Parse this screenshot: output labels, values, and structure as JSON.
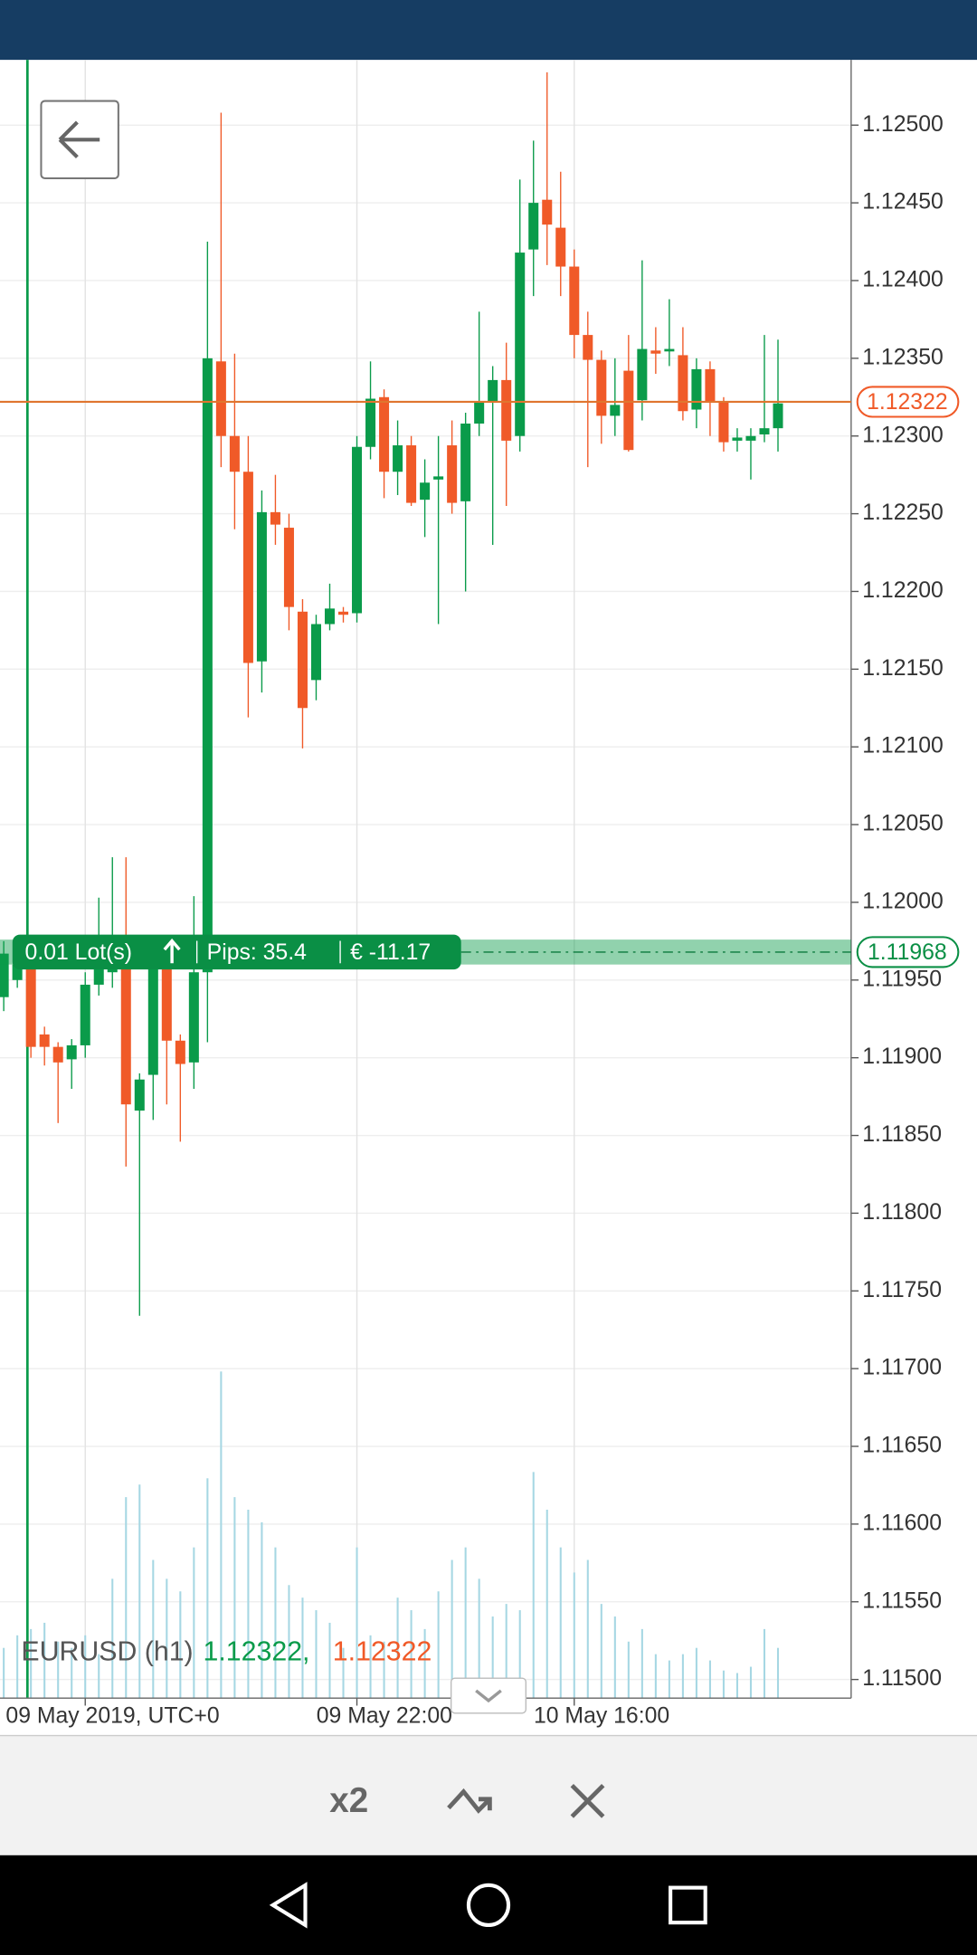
{
  "chart_data": {
    "type": "candlestick",
    "up_color": "#0a9b4a",
    "down_color": "#f05a28",
    "volume_color": "#a6d7e3",
    "ylim": [
      1.11488,
      1.12542
    ],
    "yticks": [
      {
        "value": 1.115,
        "label": "1.11500"
      },
      {
        "value": 1.1155,
        "label": "1.11550"
      },
      {
        "value": 1.116,
        "label": "1.11600"
      },
      {
        "value": 1.1165,
        "label": "1.11650"
      },
      {
        "value": 1.117,
        "label": "1.11700"
      },
      {
        "value": 1.1175,
        "label": "1.11750"
      },
      {
        "value": 1.118,
        "label": "1.11800"
      },
      {
        "value": 1.1185,
        "label": "1.11850"
      },
      {
        "value": 1.119,
        "label": "1.11900"
      },
      {
        "value": 1.1195,
        "label": "1.11950"
      },
      {
        "value": 1.12,
        "label": "1.12000"
      },
      {
        "value": 1.1205,
        "label": "1.12050"
      },
      {
        "value": 1.121,
        "label": "1.12100"
      },
      {
        "value": 1.1215,
        "label": "1.12150"
      },
      {
        "value": 1.122,
        "label": "1.12200"
      },
      {
        "value": 1.1225,
        "label": "1.12250"
      },
      {
        "value": 1.123,
        "label": "1.12300"
      },
      {
        "value": 1.1235,
        "label": "1.12350"
      },
      {
        "value": 1.124,
        "label": "1.12400"
      },
      {
        "value": 1.1245,
        "label": "1.12450"
      },
      {
        "value": 1.125,
        "label": "1.12500"
      }
    ],
    "categories": [
      null,
      null,
      null,
      null,
      null,
      null,
      "09 May 2019, UTC+0",
      null,
      null,
      null,
      null,
      null,
      null,
      null,
      null,
      null,
      null,
      null,
      null,
      null,
      null,
      null,
      null,
      null,
      null,
      null,
      "09 May 22:00",
      null,
      null,
      null,
      null,
      null,
      null,
      null,
      null,
      null,
      null,
      null,
      null,
      null,
      null,
      null,
      "10 May 16:00",
      null,
      null,
      null,
      null,
      null,
      null,
      null,
      null,
      null,
      null,
      null,
      null,
      null,
      null,
      null
    ],
    "ohlc": [
      [
        1.11939,
        1.11975,
        1.1193,
        1.11967
      ],
      [
        1.1195,
        1.1197,
        1.11945,
        1.1196
      ],
      [
        1.11959,
        1.11965,
        1.119,
        1.11907
      ],
      [
        1.11915,
        1.1192,
        1.11895,
        1.11907
      ],
      [
        1.11907,
        1.1191,
        1.11858,
        1.11897
      ],
      [
        1.11899,
        1.11912,
        1.1188,
        1.11908
      ],
      [
        1.11908,
        1.11955,
        1.119,
        1.11947
      ],
      [
        1.11947,
        1.12003,
        1.1194,
        1.11959
      ],
      [
        1.11955,
        1.12029,
        1.11945,
        1.11967
      ],
      [
        1.11959,
        1.12029,
        1.1183,
        1.1187
      ],
      [
        1.11866,
        1.1189,
        1.11734,
        1.11886
      ],
      [
        1.11889,
        1.11965,
        1.1186,
        1.11959
      ],
      [
        1.11959,
        1.11965,
        1.1187,
        1.11911
      ],
      [
        1.11911,
        1.11915,
        1.11846,
        1.11896
      ],
      [
        1.11897,
        1.12004,
        1.1188,
        1.11955
      ],
      [
        1.11955,
        1.12425,
        1.1191,
        1.1235
      ],
      [
        1.12348,
        1.12508,
        1.1228,
        1.123
      ],
      [
        1.123,
        1.12353,
        1.1224,
        1.12277
      ],
      [
        1.12277,
        1.123,
        1.12119,
        1.12154
      ],
      [
        1.12155,
        1.12265,
        1.12135,
        1.12251
      ],
      [
        1.12251,
        1.12275,
        1.1223,
        1.12243
      ],
      [
        1.12241,
        1.1225,
        1.12175,
        1.1219
      ],
      [
        1.12187,
        1.12195,
        1.12099,
        1.12125
      ],
      [
        1.12143,
        1.12185,
        1.1213,
        1.12179
      ],
      [
        1.12179,
        1.12205,
        1.12175,
        1.12189
      ],
      [
        1.12187,
        1.1219,
        1.1218,
        1.12185
      ],
      [
        1.12186,
        1.123,
        1.1218,
        1.12293
      ],
      [
        1.12293,
        1.12348,
        1.12285,
        1.12324
      ],
      [
        1.12325,
        1.1233,
        1.1226,
        1.12277
      ],
      [
        1.12277,
        1.1231,
        1.12262,
        1.12294
      ],
      [
        1.12294,
        1.123,
        1.12255,
        1.12257
      ],
      [
        1.12259,
        1.12285,
        1.12235,
        1.1227
      ],
      [
        1.12272,
        1.123,
        1.12179,
        1.12274
      ],
      [
        1.12294,
        1.1231,
        1.1225,
        1.12257
      ],
      [
        1.12258,
        1.12315,
        1.122,
        1.12308
      ],
      [
        1.12308,
        1.1238,
        1.123,
        1.12322
      ],
      [
        1.12322,
        1.12345,
        1.1223,
        1.12336
      ],
      [
        1.12336,
        1.1236,
        1.12255,
        1.12297
      ],
      [
        1.123,
        1.12465,
        1.1229,
        1.12418
      ],
      [
        1.1242,
        1.1249,
        1.1239,
        1.1245
      ],
      [
        1.12452,
        1.12534,
        1.1241,
        1.12436
      ],
      [
        1.12434,
        1.1247,
        1.1239,
        1.12409
      ],
      [
        1.12409,
        1.1242,
        1.1235,
        1.12365
      ],
      [
        1.12365,
        1.1238,
        1.1228,
        1.12349
      ],
      [
        1.12349,
        1.12355,
        1.12295,
        1.12313
      ],
      [
        1.12313,
        1.1235,
        1.123,
        1.1232
      ],
      [
        1.12342,
        1.12365,
        1.1229,
        1.12291
      ],
      [
        1.12323,
        1.12413,
        1.1231,
        1.12356
      ],
      [
        1.12355,
        1.1237,
        1.1234,
        1.12353
      ],
      [
        1.12355,
        1.12388,
        1.12345,
        1.12356
      ],
      [
        1.12352,
        1.1237,
        1.1231,
        1.12316
      ],
      [
        1.12317,
        1.1235,
        1.12305,
        1.12343
      ],
      [
        1.12343,
        1.12348,
        1.123,
        1.12322
      ],
      [
        1.12322,
        1.12325,
        1.1229,
        1.12296
      ],
      [
        1.12297,
        1.12305,
        1.1229,
        1.12299
      ],
      [
        1.12297,
        1.12305,
        1.12272,
        1.123
      ],
      [
        1.12301,
        1.12365,
        1.12296,
        1.12305
      ],
      [
        1.12305,
        1.12362,
        1.1229,
        1.12321
      ]
    ],
    "volume": [
      40,
      50,
      55,
      60,
      45,
      40,
      50,
      35,
      95,
      160,
      170,
      110,
      95,
      85,
      120,
      175,
      260,
      160,
      150,
      140,
      120,
      90,
      80,
      70,
      60,
      40,
      120,
      50,
      45,
      80,
      70,
      55,
      85,
      110,
      120,
      95,
      65,
      75,
      70,
      180,
      150,
      120,
      100,
      110,
      75,
      65,
      45,
      55,
      35,
      30,
      35,
      40,
      30,
      22,
      20,
      25,
      55,
      40
    ],
    "current_price": 1.12322,
    "position": {
      "price": 1.11968,
      "lots": "0.01 Lot(s)",
      "pips": "Pips: 35.4",
      "pnl": "€ -11.17"
    }
  },
  "legend": {
    "symbol": "EURUSD (h1)",
    "bid": "1.12322,",
    "ask": "1.12322"
  },
  "toolbar": {
    "zoom": "x2"
  }
}
